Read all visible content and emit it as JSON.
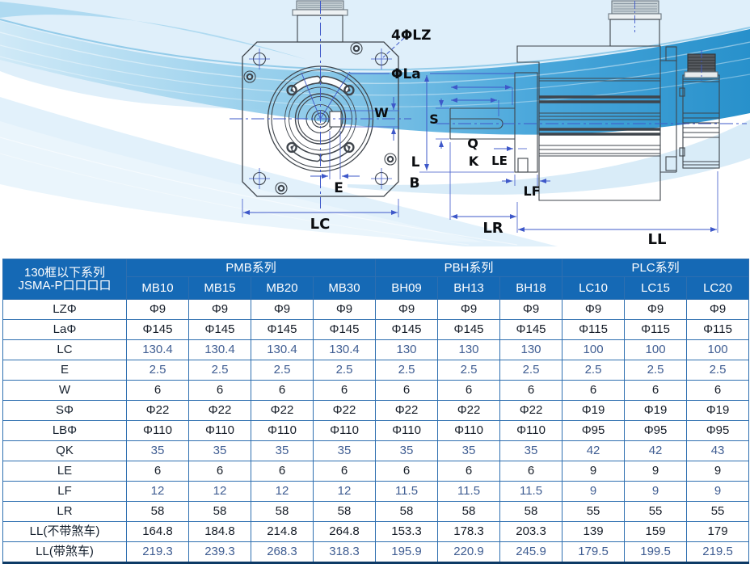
{
  "palette": {
    "header_bg": "#1569b5",
    "grid_blue": "#2e6fb0",
    "dark_navy_separator": "#0b3a68",
    "dimension_blue": "#3e58c9",
    "line_art": "#3f454c",
    "text_dark": "#161d28",
    "text_blue": "#3f5d92",
    "wave_strong": "#1f8cc9",
    "wave_light": "#dbedf9"
  },
  "drawing": {
    "labels": {
      "lz": "4ΦLZ",
      "la": "ΦLa",
      "w": "W",
      "e": "E",
      "lc": "LC",
      "s": "S",
      "q": "Q",
      "k": "K",
      "le": "LE",
      "l": "L",
      "b": "B",
      "lf": "LF",
      "lr": "LR",
      "ll": "LL"
    }
  },
  "table": {
    "header": {
      "series_title_line1": "130框以下系列",
      "series_title_line2": "JSMA-P口口口口",
      "groups": [
        {
          "label": "PMB系列",
          "models": [
            "MB10",
            "MB15",
            "MB20",
            "MB30"
          ]
        },
        {
          "label": "PBH系列",
          "models": [
            "BH09",
            "BH13",
            "BH18"
          ]
        },
        {
          "label": "PLC系列",
          "models": [
            "LC10",
            "LC15",
            "LC20"
          ]
        }
      ]
    },
    "rows": [
      {
        "label": "LZΦ",
        "tone": "dark",
        "values": [
          "Φ9",
          "Φ9",
          "Φ9",
          "Φ9",
          "Φ9",
          "Φ9",
          "Φ9",
          "Φ9",
          "Φ9",
          "Φ9"
        ]
      },
      {
        "label": "LaΦ",
        "tone": "dark",
        "values": [
          "Φ145",
          "Φ145",
          "Φ145",
          "Φ145",
          "Φ145",
          "Φ145",
          "Φ145",
          "Φ115",
          "Φ115",
          "Φ115"
        ]
      },
      {
        "label": "LC",
        "tone": "blue",
        "values": [
          "130.4",
          "130.4",
          "130.4",
          "130.4",
          "130",
          "130",
          "130",
          "100",
          "100",
          "100"
        ]
      },
      {
        "label": "E",
        "tone": "blue",
        "values": [
          "2.5",
          "2.5",
          "2.5",
          "2.5",
          "2.5",
          "2.5",
          "2.5",
          "2.5",
          "2.5",
          "2.5"
        ]
      },
      {
        "label": "W",
        "tone": "dark",
        "values": [
          "6",
          "6",
          "6",
          "6",
          "6",
          "6",
          "6",
          "6",
          "6",
          "6"
        ]
      },
      {
        "label": "SΦ",
        "tone": "dark",
        "values": [
          "Φ22",
          "Φ22",
          "Φ22",
          "Φ22",
          "Φ22",
          "Φ22",
          "Φ22",
          "Φ19",
          "Φ19",
          "Φ19"
        ]
      },
      {
        "label": "LBΦ",
        "tone": "dark",
        "values": [
          "Φ110",
          "Φ110",
          "Φ110",
          "Φ110",
          "Φ110",
          "Φ110",
          "Φ110",
          "Φ95",
          "Φ95",
          "Φ95"
        ]
      },
      {
        "label": "QK",
        "tone": "blue",
        "values": [
          "35",
          "35",
          "35",
          "35",
          "35",
          "35",
          "35",
          "42",
          "42",
          "43"
        ]
      },
      {
        "label": "LE",
        "tone": "dark",
        "values": [
          "6",
          "6",
          "6",
          "6",
          "6",
          "6",
          "6",
          "9",
          "9",
          "9"
        ]
      },
      {
        "label": "LF",
        "tone": "blue",
        "values": [
          "12",
          "12",
          "12",
          "12",
          "11.5",
          "11.5",
          "11.5",
          "9",
          "9",
          "9"
        ]
      },
      {
        "label": "LR",
        "tone": "dark",
        "values": [
          "58",
          "58",
          "58",
          "58",
          "58",
          "58",
          "58",
          "55",
          "55",
          "55"
        ]
      },
      {
        "label": "LL(不带煞车)",
        "tone": "dark",
        "values": [
          "164.8",
          "184.8",
          "214.8",
          "264.8",
          "153.3",
          "178.3",
          "203.3",
          "139",
          "159",
          "179"
        ]
      },
      {
        "label": "LL(带煞车)",
        "tone": "blue",
        "values": [
          "219.3",
          "239.3",
          "268.3",
          "318.3",
          "195.9",
          "220.9",
          "245.9",
          "179.5",
          "199.5",
          "219.5"
        ]
      }
    ]
  }
}
